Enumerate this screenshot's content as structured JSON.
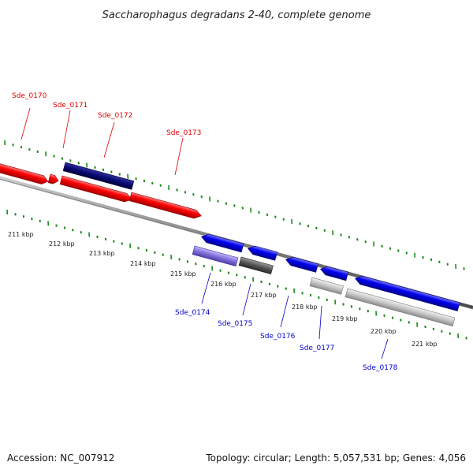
{
  "title": "Saccharophagus degradans 2-40, complete genome",
  "footer": {
    "accession": "Accession: NC_007912",
    "topology": "Topology: circular; Length: 5,057,531 bp; Genes: 4,056"
  },
  "colors": {
    "forward_gene": "#ff0000",
    "forward_label": "#dd0000",
    "reverse_gene": "#0000ee",
    "reverse_label": "#0000cc",
    "backbone": "#808080",
    "ticks": "#1a8a1a",
    "other_blue": "#8070d8",
    "dark_navy": "#0a0a70",
    "grey_feature": "#bdbdbd",
    "dark_grey_feature": "#555555"
  },
  "kbp_labels": [
    "211 kbp",
    "212 kbp",
    "213 kbp",
    "214 kbp",
    "215 kbp",
    "216 kbp",
    "217 kbp",
    "218 kbp",
    "219 kbp",
    "220 kbp",
    "221 kbp"
  ],
  "forward_genes": [
    "Sde_0170",
    "Sde_0171",
    "Sde_0172",
    "Sde_0173"
  ],
  "reverse_genes": [
    "Sde_0174",
    "Sde_0175",
    "Sde_0176",
    "Sde_0177",
    "Sde_0178"
  ]
}
